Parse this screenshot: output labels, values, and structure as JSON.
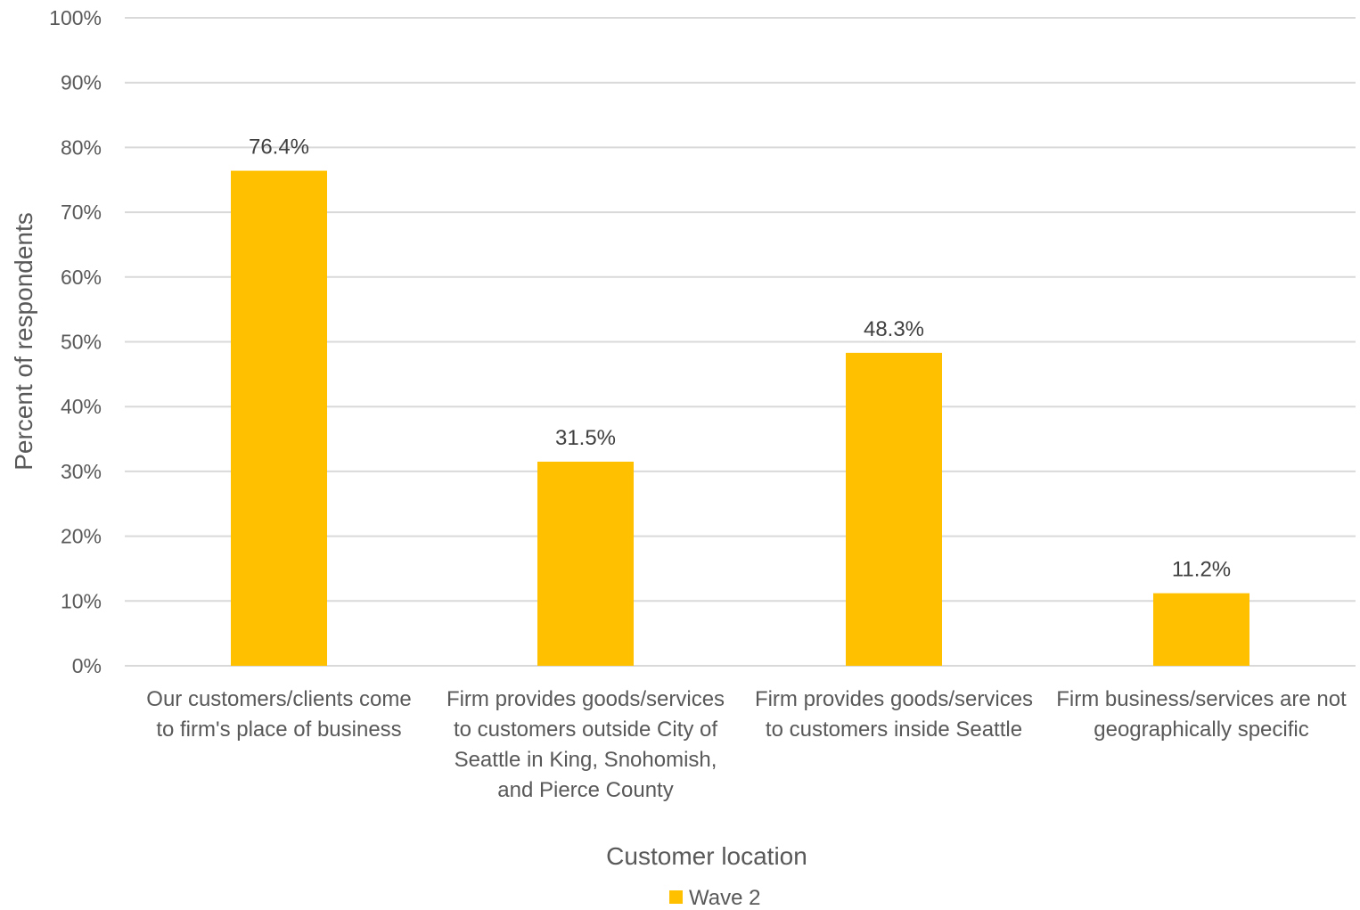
{
  "chart_data": {
    "type": "bar",
    "categories": [
      [
        "Our customers/clients come",
        "to firm's place of business"
      ],
      [
        "Firm provides goods/services",
        "to customers outside City of",
        "Seattle in King, Snohomish,",
        "and Pierce County"
      ],
      [
        "Firm provides goods/services",
        "to customers inside  Seattle"
      ],
      [
        "Firm business/services are not",
        "geographically specific"
      ]
    ],
    "series": [
      {
        "name": "Wave 2",
        "color": "#FFC000",
        "values": [
          76.4,
          31.5,
          48.3,
          11.2
        ],
        "data_labels": [
          "76.4%",
          "31.5%",
          "48.3%",
          "11.2%"
        ]
      }
    ],
    "title": "",
    "xlabel": "Customer location",
    "ylabel": "Percent of respondents",
    "ylim": [
      0,
      100
    ],
    "yticks": [
      0,
      10,
      20,
      30,
      40,
      50,
      60,
      70,
      80,
      90,
      100
    ],
    "ytick_labels": [
      "0%",
      "10%",
      "20%",
      "30%",
      "40%",
      "50%",
      "60%",
      "70%",
      "80%",
      "90%",
      "100%"
    ],
    "grid": true,
    "legend": "bottom-center",
    "colors": {
      "grid": "#D9D9D9",
      "text": "#595959",
      "data_label": "#404040"
    }
  }
}
